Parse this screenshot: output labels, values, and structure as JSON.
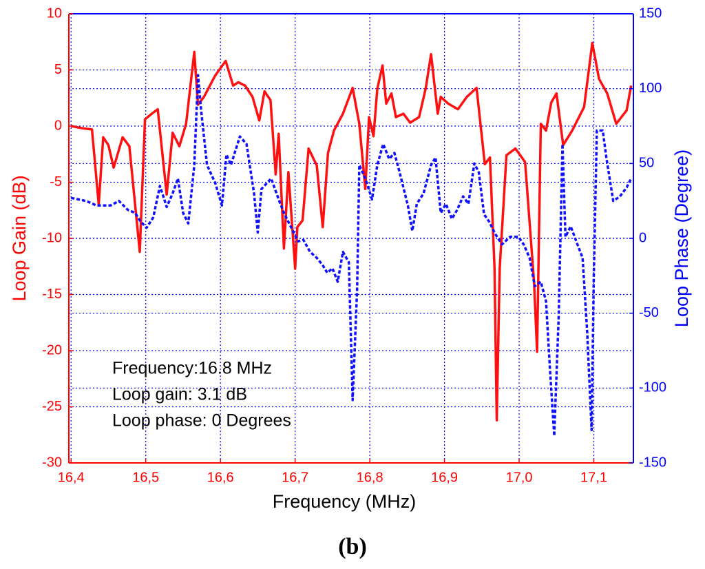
{
  "chart_data": {
    "type": "line",
    "x_label": "Frequency (MHz)",
    "y_label": "Loop Gain (dB)",
    "y2_label": "Loop Phase (Degree)",
    "annotations": [
      "Frequency:16.8 MHz",
      "Loop gain: 3.1 dB",
      "Loop phase: 0 Degrees"
    ],
    "xlim": [
      16.397,
      17.153
    ],
    "xticks": [
      {
        "value": 16.4,
        "label": "16,4"
      },
      {
        "value": 16.5,
        "label": "16,5"
      },
      {
        "value": 16.6,
        "label": "16,6"
      },
      {
        "value": 16.7,
        "label": "16,7"
      },
      {
        "value": 16.8,
        "label": "16,8"
      },
      {
        "value": 16.9,
        "label": "16,9"
      },
      {
        "value": 17.0,
        "label": "17,0"
      },
      {
        "value": 17.1,
        "label": "17,1"
      }
    ],
    "ylim": [
      -30,
      10
    ],
    "yticks": [
      -30,
      -25,
      -20,
      -15,
      -10,
      -5,
      0,
      5,
      10
    ],
    "y2lim": [
      -150,
      150
    ],
    "y2ticks": [
      -150,
      -100,
      -50,
      0,
      50,
      100,
      150
    ],
    "grid": true,
    "grid_color": "#0000ff",
    "y_color": "#ff0000",
    "y2_color": "#0000ff",
    "series": [
      {
        "name": "Loop Gain",
        "color": "#ff1010",
        "dash": false,
        "axis": "y",
        "x": [
          16.4,
          16.416,
          16.428,
          16.437,
          16.443,
          16.45,
          16.457,
          16.469,
          16.478,
          16.492,
          16.499,
          16.508,
          16.516,
          16.528,
          16.536,
          16.545,
          16.554,
          16.565,
          16.57,
          16.578,
          16.593,
          16.607,
          16.617,
          16.624,
          16.633,
          16.643,
          16.652,
          16.659,
          16.667,
          16.674,
          16.678,
          16.685,
          16.691,
          16.7,
          16.703,
          16.71,
          16.718,
          16.729,
          16.737,
          16.744,
          16.752,
          16.764,
          16.777,
          16.786,
          16.794,
          16.799,
          16.805,
          16.81,
          16.817,
          16.822,
          16.829,
          16.835,
          16.845,
          16.854,
          16.866,
          16.875,
          16.882,
          16.891,
          16.895,
          16.905,
          16.918,
          16.93,
          16.943,
          16.954,
          16.961,
          16.967,
          16.97,
          16.974,
          16.983,
          16.995,
          17.008,
          17.02,
          17.024,
          17.029,
          17.036,
          17.043,
          17.05,
          17.059,
          17.071,
          17.087,
          17.098,
          17.107,
          17.118,
          17.13,
          17.144,
          17.15
        ],
        "values": [
          0,
          -0.2,
          -0.3,
          -7.0,
          -1.0,
          -1.7,
          -3.7,
          -1.0,
          -1.8,
          -11.2,
          0.6,
          1.1,
          1.5,
          -6.1,
          -0.6,
          -1.8,
          0.2,
          6.6,
          1.9,
          2.6,
          4.5,
          5.8,
          3.6,
          3.9,
          3.6,
          2.6,
          0.5,
          3.1,
          2.3,
          -4.3,
          -0.7,
          -10.9,
          -4.1,
          -12.7,
          -9.0,
          -8.4,
          -2.0,
          -3.5,
          -9.0,
          -2.4,
          -0.4,
          1.1,
          3.4,
          0.2,
          -5.6,
          0.8,
          -0.9,
          3.3,
          5.4,
          2.0,
          2.9,
          0.8,
          1.1,
          0.3,
          0.8,
          3.4,
          6.4,
          1.1,
          2.6,
          2.0,
          1.5,
          2.6,
          3.4,
          -3.4,
          -2.8,
          -12.7,
          -26.2,
          -12.7,
          -2.6,
          -2.0,
          -3.2,
          -13.9,
          -20.1,
          0.2,
          -0.4,
          2.1,
          2.9,
          -1.7,
          -0.4,
          1.7,
          7.4,
          4.2,
          2.9,
          0.2,
          1.4,
          3.6
        ]
      },
      {
        "name": "Loop Phase",
        "color": "#1010ff",
        "dash": true,
        "axis": "y2",
        "x": [
          16.4,
          16.42,
          16.434,
          16.453,
          16.464,
          16.476,
          16.486,
          16.492,
          16.501,
          16.51,
          16.519,
          16.528,
          16.536,
          16.543,
          16.55,
          16.557,
          16.565,
          16.57,
          16.574,
          16.582,
          16.593,
          16.602,
          16.608,
          16.614,
          16.626,
          16.635,
          16.645,
          16.65,
          16.655,
          16.668,
          16.678,
          16.685,
          16.692,
          16.704,
          16.711,
          16.72,
          16.729,
          16.737,
          16.743,
          16.75,
          16.757,
          16.764,
          16.772,
          16.777,
          16.783,
          16.786,
          16.794,
          16.803,
          16.81,
          16.818,
          16.826,
          16.833,
          16.84,
          16.851,
          16.857,
          16.863,
          16.872,
          16.882,
          16.888,
          16.895,
          16.902,
          16.91,
          16.917,
          16.925,
          16.932,
          16.94,
          16.946,
          16.953,
          16.96,
          16.968,
          16.977,
          16.988,
          16.999,
          17.006,
          17.014,
          17.021,
          17.029,
          17.036,
          17.041,
          17.047,
          17.053,
          17.058,
          17.062,
          17.069,
          17.078,
          17.085,
          17.091,
          17.097,
          17.1,
          17.104,
          17.112,
          17.117,
          17.126,
          17.135,
          17.144,
          17.15
        ],
        "values": [
          27,
          25,
          22,
          22,
          25,
          19,
          17,
          12,
          7,
          14,
          35,
          21,
          30,
          40,
          17,
          10,
          49,
          109,
          86,
          49,
          37,
          22,
          56,
          49,
          68,
          63,
          30,
          4,
          33,
          40,
          26,
          17,
          10,
          -2,
          -1,
          -9,
          -13,
          -18,
          -23,
          -20,
          -29,
          -9,
          -16,
          -108,
          -34,
          49,
          40,
          26,
          49,
          63,
          53,
          57,
          44,
          22,
          5,
          23,
          30,
          49,
          54,
          17,
          23,
          13,
          19,
          28,
          23,
          50,
          44,
          16,
          11,
          3,
          -4,
          1,
          1,
          -4,
          -13,
          -32,
          -29,
          -42,
          -85,
          -132,
          -52,
          63,
          1,
          8,
          -4,
          -13,
          -62,
          -128,
          -25,
          72,
          72,
          53,
          25,
          28,
          34,
          40
        ]
      }
    ]
  },
  "caption": "(b)"
}
